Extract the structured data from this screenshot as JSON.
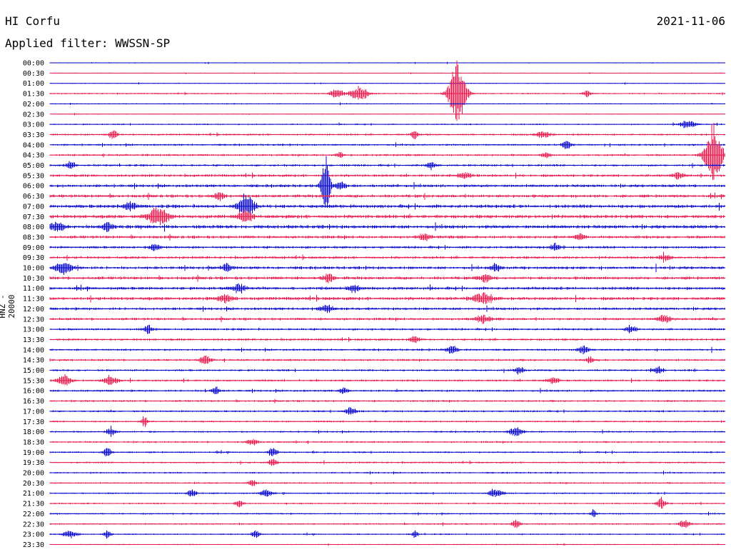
{
  "header": {
    "station": "HI Corfu",
    "date": "2021-11-06",
    "filter_label": "Applied filter: WWSSN-SP",
    "channel_label": "HNZ - 20000"
  },
  "chart_data": {
    "type": "line",
    "title": "HI Corfu",
    "subtitle": "Applied filter: WWSSN-SP",
    "ylabel": "HNZ - 20000",
    "grid": false,
    "row_labels": [
      "00:00",
      "00:30",
      "01:00",
      "01:30",
      "02:00",
      "02:30",
      "03:00",
      "03:30",
      "04:00",
      "04:30",
      "05:00",
      "05:30",
      "06:00",
      "06:30",
      "07:00",
      "07:30",
      "08:00",
      "08:30",
      "09:00",
      "09:30",
      "10:00",
      "10:30",
      "11:00",
      "11:30",
      "12:00",
      "12:30",
      "13:00",
      "13:30",
      "14:00",
      "14:30",
      "15:00",
      "15:30",
      "16:00",
      "16:30",
      "17:00",
      "17:30",
      "18:00",
      "18:30",
      "19:00",
      "19:30",
      "20:00",
      "20:30",
      "21:00",
      "21:30",
      "22:00",
      "22:30",
      "23:00",
      "23:30"
    ],
    "colors": [
      "#0000cc",
      "#e8154a"
    ],
    "row_noise": [
      0.6,
      0.5,
      0.6,
      0.9,
      0.7,
      0.6,
      0.9,
      1.2,
      1.2,
      1.3,
      1.4,
      1.6,
      1.8,
      1.9,
      2.2,
      2.2,
      2.2,
      1.8,
      1.6,
      1.6,
      1.8,
      1.9,
      1.9,
      2.0,
      1.7,
      1.6,
      1.4,
      1.4,
      1.3,
      1.3,
      1.3,
      1.3,
      1.3,
      1.2,
      1.2,
      1.1,
      1.1,
      1.1,
      1.1,
      1.1,
      1.0,
      1.0,
      1.0,
      1.0,
      1.0,
      1.0,
      0.9,
      0.7
    ],
    "events": [
      {
        "row": 3,
        "t": 0.425,
        "amp": 7,
        "dur": 0.01
      },
      {
        "row": 3,
        "t": 0.458,
        "amp": 12,
        "dur": 0.012
      },
      {
        "row": 3,
        "t": 0.603,
        "amp": 50,
        "dur": 0.012
      },
      {
        "row": 3,
        "t": 0.795,
        "amp": 5,
        "dur": 0.006
      },
      {
        "row": 6,
        "t": 0.945,
        "amp": 6,
        "dur": 0.012
      },
      {
        "row": 7,
        "t": 0.093,
        "amp": 7,
        "dur": 0.006
      },
      {
        "row": 7,
        "t": 0.54,
        "amp": 8,
        "dur": 0.005
      },
      {
        "row": 7,
        "t": 0.73,
        "amp": 5,
        "dur": 0.01
      },
      {
        "row": 8,
        "t": 0.765,
        "amp": 8,
        "dur": 0.006
      },
      {
        "row": 9,
        "t": 0.43,
        "amp": 5,
        "dur": 0.005
      },
      {
        "row": 9,
        "t": 0.735,
        "amp": 5,
        "dur": 0.006
      },
      {
        "row": 9,
        "t": 0.982,
        "amp": 45,
        "dur": 0.012
      },
      {
        "row": 10,
        "t": 0.031,
        "amp": 6,
        "dur": 0.006
      },
      {
        "row": 10,
        "t": 0.565,
        "amp": 6,
        "dur": 0.006
      },
      {
        "row": 11,
        "t": 0.614,
        "amp": 4,
        "dur": 0.01
      },
      {
        "row": 11,
        "t": 0.93,
        "amp": 5,
        "dur": 0.008
      },
      {
        "row": 12,
        "t": 0.408,
        "amp": 48,
        "dur": 0.006
      },
      {
        "row": 12,
        "t": 0.43,
        "amp": 6,
        "dur": 0.008
      },
      {
        "row": 13,
        "t": 0.25,
        "amp": 6,
        "dur": 0.008
      },
      {
        "row": 14,
        "t": 0.29,
        "amp": 18,
        "dur": 0.012
      },
      {
        "row": 14,
        "t": 0.118,
        "amp": 6,
        "dur": 0.01
      },
      {
        "row": 15,
        "t": 0.16,
        "amp": 14,
        "dur": 0.014
      },
      {
        "row": 15,
        "t": 0.29,
        "amp": 10,
        "dur": 0.01
      },
      {
        "row": 16,
        "t": 0.01,
        "amp": 8,
        "dur": 0.01
      },
      {
        "row": 16,
        "t": 0.085,
        "amp": 7,
        "dur": 0.008
      },
      {
        "row": 17,
        "t": 0.555,
        "amp": 6,
        "dur": 0.008
      },
      {
        "row": 17,
        "t": 0.785,
        "amp": 5,
        "dur": 0.008
      },
      {
        "row": 18,
        "t": 0.155,
        "amp": 6,
        "dur": 0.006
      },
      {
        "row": 18,
        "t": 0.748,
        "amp": 7,
        "dur": 0.006
      },
      {
        "row": 19,
        "t": 0.91,
        "amp": 5,
        "dur": 0.008
      },
      {
        "row": 20,
        "t": 0.02,
        "amp": 9,
        "dur": 0.012
      },
      {
        "row": 20,
        "t": 0.262,
        "amp": 8,
        "dur": 0.006
      },
      {
        "row": 20,
        "t": 0.66,
        "amp": 6,
        "dur": 0.008
      },
      {
        "row": 21,
        "t": 0.412,
        "amp": 7,
        "dur": 0.008
      },
      {
        "row": 21,
        "t": 0.645,
        "amp": 6,
        "dur": 0.008
      },
      {
        "row": 22,
        "t": 0.28,
        "amp": 8,
        "dur": 0.008
      },
      {
        "row": 22,
        "t": 0.45,
        "amp": 6,
        "dur": 0.008
      },
      {
        "row": 23,
        "t": 0.64,
        "amp": 8,
        "dur": 0.014
      },
      {
        "row": 23,
        "t": 0.26,
        "amp": 6,
        "dur": 0.01
      },
      {
        "row": 24,
        "t": 0.41,
        "amp": 5,
        "dur": 0.01
      },
      {
        "row": 25,
        "t": 0.64,
        "amp": 6,
        "dur": 0.01
      },
      {
        "row": 25,
        "t": 0.91,
        "amp": 6,
        "dur": 0.01
      },
      {
        "row": 26,
        "t": 0.145,
        "amp": 7,
        "dur": 0.006
      },
      {
        "row": 26,
        "t": 0.86,
        "amp": 6,
        "dur": 0.008
      },
      {
        "row": 27,
        "t": 0.54,
        "amp": 5,
        "dur": 0.008
      },
      {
        "row": 28,
        "t": 0.595,
        "amp": 7,
        "dur": 0.008
      },
      {
        "row": 28,
        "t": 0.79,
        "amp": 6,
        "dur": 0.008
      },
      {
        "row": 29,
        "t": 0.23,
        "amp": 7,
        "dur": 0.008
      },
      {
        "row": 29,
        "t": 0.8,
        "amp": 5,
        "dur": 0.006
      },
      {
        "row": 30,
        "t": 0.695,
        "amp": 5,
        "dur": 0.008
      },
      {
        "row": 30,
        "t": 0.9,
        "amp": 6,
        "dur": 0.008
      },
      {
        "row": 31,
        "t": 0.02,
        "amp": 9,
        "dur": 0.01
      },
      {
        "row": 31,
        "t": 0.09,
        "amp": 8,
        "dur": 0.01
      },
      {
        "row": 31,
        "t": 0.745,
        "amp": 5,
        "dur": 0.008
      },
      {
        "row": 32,
        "t": 0.245,
        "amp": 6,
        "dur": 0.006
      },
      {
        "row": 32,
        "t": 0.435,
        "amp": 6,
        "dur": 0.006
      },
      {
        "row": 34,
        "t": 0.445,
        "amp": 6,
        "dur": 0.008
      },
      {
        "row": 35,
        "t": 0.14,
        "amp": 10,
        "dur": 0.004
      },
      {
        "row": 36,
        "t": 0.09,
        "amp": 7,
        "dur": 0.006
      },
      {
        "row": 36,
        "t": 0.69,
        "amp": 7,
        "dur": 0.01
      },
      {
        "row": 37,
        "t": 0.3,
        "amp": 5,
        "dur": 0.008
      },
      {
        "row": 38,
        "t": 0.085,
        "amp": 7,
        "dur": 0.006
      },
      {
        "row": 38,
        "t": 0.33,
        "amp": 8,
        "dur": 0.006
      },
      {
        "row": 39,
        "t": 0.33,
        "amp": 6,
        "dur": 0.006
      },
      {
        "row": 41,
        "t": 0.3,
        "amp": 5,
        "dur": 0.006
      },
      {
        "row": 42,
        "t": 0.21,
        "amp": 7,
        "dur": 0.006
      },
      {
        "row": 42,
        "t": 0.32,
        "amp": 7,
        "dur": 0.008
      },
      {
        "row": 42,
        "t": 0.66,
        "amp": 7,
        "dur": 0.01
      },
      {
        "row": 43,
        "t": 0.28,
        "amp": 6,
        "dur": 0.006
      },
      {
        "row": 43,
        "t": 0.905,
        "amp": 10,
        "dur": 0.006
      },
      {
        "row": 44,
        "t": 0.805,
        "amp": 6,
        "dur": 0.004
      },
      {
        "row": 45,
        "t": 0.69,
        "amp": 7,
        "dur": 0.006
      },
      {
        "row": 45,
        "t": 0.94,
        "amp": 6,
        "dur": 0.008
      },
      {
        "row": 46,
        "t": 0.03,
        "amp": 6,
        "dur": 0.01
      },
      {
        "row": 46,
        "t": 0.085,
        "amp": 6,
        "dur": 0.006
      },
      {
        "row": 46,
        "t": 0.305,
        "amp": 7,
        "dur": 0.006
      },
      {
        "row": 46,
        "t": 0.54,
        "amp": 5,
        "dur": 0.004
      }
    ]
  }
}
